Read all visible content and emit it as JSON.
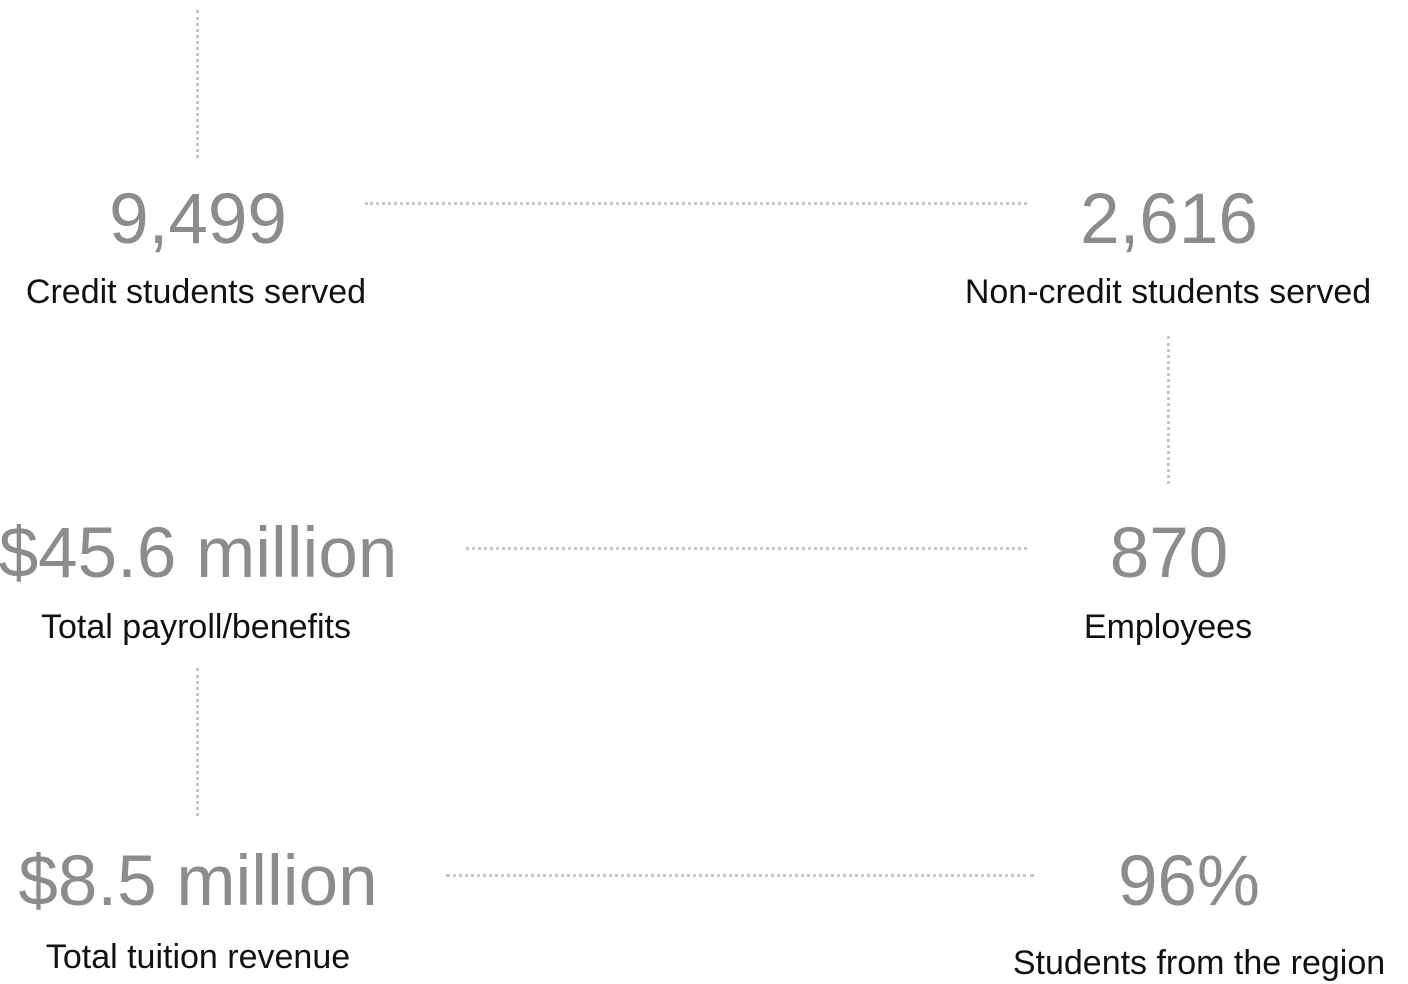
{
  "stats": [
    {
      "value": "9,499",
      "label": "Credit students served"
    },
    {
      "value": "2,616",
      "label": "Non-credit students served"
    },
    {
      "value": "$45.6 million",
      "label": "Total payroll/benefits"
    },
    {
      "value": "870",
      "label": "Employees"
    },
    {
      "value": "$8.5 million",
      "label": "Total tuition revenue"
    },
    {
      "value": "96%",
      "label": "Students from the region"
    }
  ],
  "colors": {
    "value_text": "#8c8c8c",
    "label_text": "#111111",
    "connector": "#c3c8cf"
  }
}
